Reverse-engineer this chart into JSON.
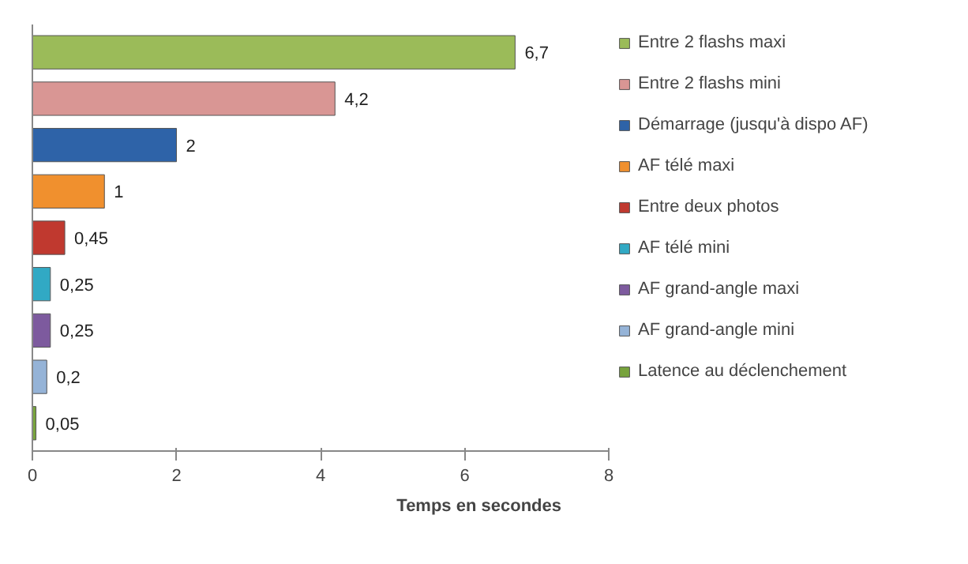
{
  "chart_data": {
    "type": "bar",
    "orientation": "horizontal",
    "stacked": true,
    "xlabel": "Temps en secondes",
    "categories": [
      null,
      null,
      null,
      null,
      null,
      null,
      null,
      null,
      null
    ],
    "series": [
      {
        "name": "Entre 2 flashs maxi",
        "color": "#9bbb59",
        "values": [
          6.7,
          null,
          null,
          null,
          null,
          null,
          null,
          null,
          null
        ],
        "value_labels": [
          "6,7",
          null,
          null,
          null,
          null,
          null,
          null,
          null,
          null
        ]
      },
      {
        "name": "Entre 2 flashs mini",
        "color": "#d99694",
        "values": [
          null,
          4.2,
          null,
          null,
          null,
          null,
          null,
          null,
          null
        ],
        "value_labels": [
          null,
          "4,2",
          null,
          null,
          null,
          null,
          null,
          null,
          null
        ]
      },
      {
        "name": "Démarrage (jusqu'à dispo AF)",
        "color": "#2e63a8",
        "values": [
          null,
          null,
          2,
          null,
          null,
          null,
          null,
          null,
          null
        ],
        "value_labels": [
          null,
          null,
          "2",
          null,
          null,
          null,
          null,
          null,
          null
        ]
      },
      {
        "name": "AF télé maxi",
        "color": "#f0902e",
        "values": [
          null,
          null,
          null,
          1,
          null,
          null,
          null,
          null,
          null
        ],
        "value_labels": [
          null,
          null,
          null,
          "1",
          null,
          null,
          null,
          null,
          null
        ]
      },
      {
        "name": "Entre deux photos",
        "color": "#c0392f",
        "values": [
          null,
          null,
          null,
          null,
          0.45,
          null,
          null,
          null,
          null
        ],
        "value_labels": [
          null,
          null,
          null,
          null,
          "0,45",
          null,
          null,
          null,
          null
        ]
      },
      {
        "name": "AF télé mini",
        "color": "#31a9c4",
        "values": [
          null,
          null,
          null,
          null,
          null,
          0.25,
          null,
          null,
          null
        ],
        "value_labels": [
          null,
          null,
          null,
          null,
          null,
          "0,25",
          null,
          null,
          null
        ]
      },
      {
        "name": "AF grand-angle maxi",
        "color": "#7d5a9e",
        "values": [
          null,
          null,
          null,
          null,
          null,
          null,
          0.25,
          null,
          null
        ],
        "value_labels": [
          null,
          null,
          null,
          null,
          null,
          null,
          "0,25",
          null,
          null
        ]
      },
      {
        "name": "AF grand-angle mini",
        "color": "#95b3d7",
        "values": [
          null,
          null,
          null,
          null,
          null,
          null,
          null,
          0.2,
          null
        ],
        "value_labels": [
          null,
          null,
          null,
          null,
          null,
          null,
          null,
          "0,2",
          null
        ]
      },
      {
        "name": "Latence au déclenchement",
        "color": "#77a33c",
        "values": [
          null,
          null,
          null,
          null,
          null,
          null,
          null,
          null,
          0.05
        ],
        "value_labels": [
          null,
          null,
          null,
          null,
          null,
          null,
          null,
          null,
          "0,05"
        ]
      }
    ],
    "xlim": [
      0,
      8
    ],
    "xticks": [
      0,
      2,
      4,
      6,
      8
    ],
    "grid": false,
    "legend": "right",
    "tick_labels": "x"
  }
}
